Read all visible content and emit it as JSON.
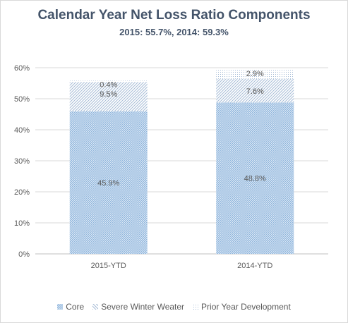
{
  "chart_data": {
    "type": "bar",
    "stacked": true,
    "title": "Calendar Year Net Loss Ratio Components",
    "subtitle": "2015: 55.7%, 2014: 59.3%",
    "categories": [
      "2015-YTD",
      "2014-YTD"
    ],
    "series": [
      {
        "name": "Core",
        "values": [
          45.9,
          48.8
        ],
        "labels": [
          "45.9%",
          "48.8%"
        ],
        "color": "#9dc3e6",
        "pattern": "checker"
      },
      {
        "name": "Severe Winter Weater",
        "values": [
          9.5,
          7.6
        ],
        "labels": [
          "9.5%",
          "7.6%"
        ],
        "color": "#a6bcd6",
        "pattern": "diagonal"
      },
      {
        "name": "Prior Year Development",
        "values": [
          0.4,
          2.9
        ],
        "labels": [
          "0.4%",
          "2.9%"
        ],
        "color": "#a6bcd6",
        "pattern": "dots"
      }
    ],
    "ylim": [
      0,
      60
    ],
    "yticks": [
      "0%",
      "10%",
      "20%",
      "30%",
      "40%",
      "50%",
      "60%"
    ],
    "grid": true,
    "legend": "bottom"
  }
}
